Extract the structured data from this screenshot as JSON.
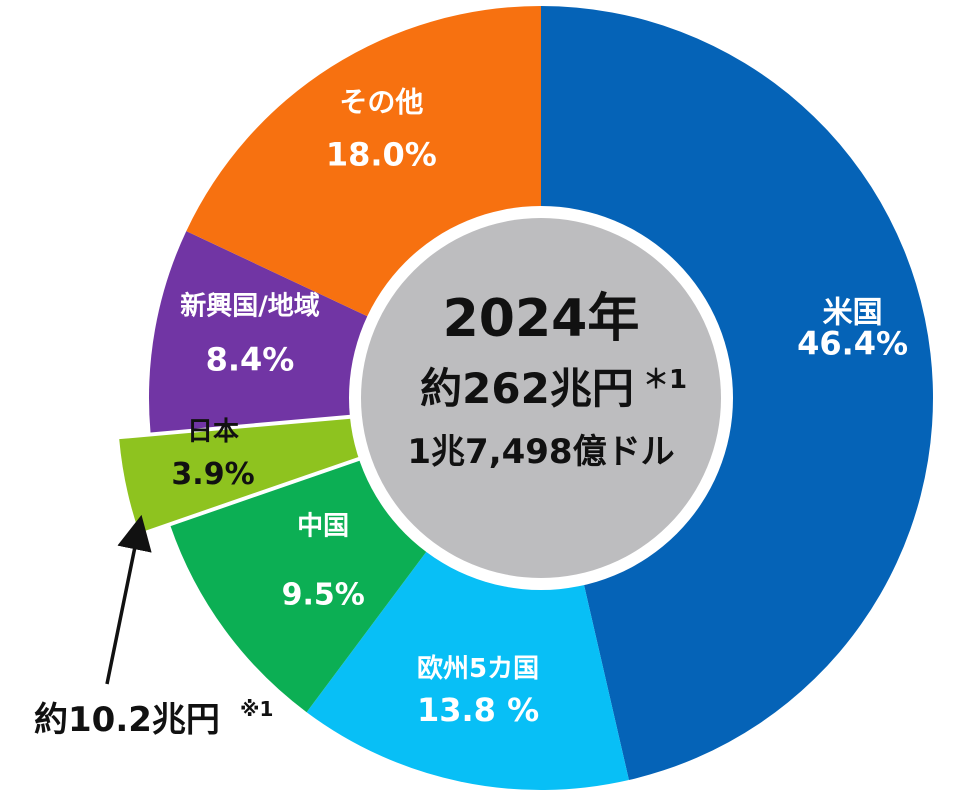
{
  "chart_data": {
    "type": "pie",
    "center": {
      "year": "2024年",
      "amount": "約262兆円",
      "amount_note": "＊1",
      "usd": "1兆7,498億ドル"
    },
    "slices": [
      {
        "label": "米国",
        "value": 46.4,
        "value_text": "46.4%",
        "color": "#0563B7",
        "text_color": "#ffffff"
      },
      {
        "label": "欧州5カ国",
        "value": 13.8,
        "value_text": "13.8 %",
        "color": "#08BFF6",
        "text_color": "#ffffff"
      },
      {
        "label": "中国",
        "value": 9.5,
        "value_text": "9.5%",
        "color": "#0CAF54",
        "text_color": "#ffffff"
      },
      {
        "label": "日本",
        "value": 3.9,
        "value_text": "3.9%",
        "color": "#8EC31F",
        "text_color": "#111111",
        "exploded": true
      },
      {
        "label": "新興国/地域",
        "value": 8.4,
        "value_text": "8.4%",
        "color": "#7135A4",
        "text_color": "#ffffff"
      },
      {
        "label": "その他",
        "value": 18.0,
        "value_text": "18.0%",
        "color": "#F77110",
        "text_color": "#ffffff"
      }
    ],
    "callout": {
      "text": "約10.2兆円",
      "note": "※1"
    }
  }
}
